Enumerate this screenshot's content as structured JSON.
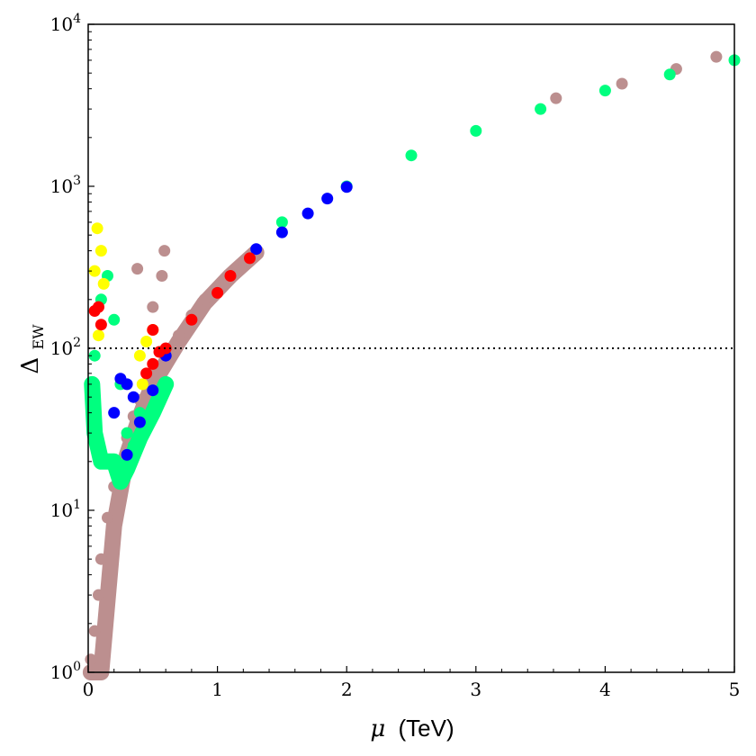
{
  "chart_data": {
    "type": "scatter",
    "title": "",
    "xlabel_symbol": "μ",
    "xlabel_unit": "(TeV)",
    "ylabel_symbol": "Δ",
    "ylabel_subscript": "EW",
    "xlim": [
      0,
      5
    ],
    "ylim": [
      1,
      10000
    ],
    "yscale": "log",
    "grid": false,
    "legend": "none",
    "x_ticks": [
      0,
      1,
      2,
      3,
      4,
      5
    ],
    "x_tick_labels": [
      "0",
      "1",
      "2",
      "3",
      "4",
      "5"
    ],
    "y_ticks": [
      1,
      10,
      100,
      1000,
      10000
    ],
    "y_tick_base": "10",
    "y_tick_exponents": [
      "0",
      "1",
      "2",
      "3",
      "4"
    ],
    "reference_line": {
      "y": 100,
      "style": "dotted",
      "color": "#000000"
    },
    "series": [
      {
        "color": "#bc8f8f",
        "points": [
          [
            0.02,
            1.2
          ],
          [
            0.05,
            1.8
          ],
          [
            0.08,
            3
          ],
          [
            0.1,
            5
          ],
          [
            0.15,
            9
          ],
          [
            0.2,
            14
          ],
          [
            0.25,
            20
          ],
          [
            0.3,
            28
          ],
          [
            0.35,
            38
          ],
          [
            0.4,
            48
          ],
          [
            0.5,
            70
          ],
          [
            0.6,
            95
          ],
          [
            0.7,
            120
          ],
          [
            0.8,
            160
          ],
          [
            0.9,
            200
          ],
          [
            1.0,
            240
          ],
          [
            1.1,
            290
          ],
          [
            1.2,
            340
          ],
          [
            1.3,
            400
          ],
          [
            0.38,
            310
          ],
          [
            0.57,
            280
          ],
          [
            0.59,
            400
          ],
          [
            0.5,
            180
          ],
          [
            3.62,
            3500
          ],
          [
            4.13,
            4300
          ],
          [
            4.55,
            5300
          ],
          [
            4.86,
            6300
          ]
        ],
        "band": [
          [
            0.02,
            1
          ],
          [
            0.1,
            1
          ],
          [
            0.2,
            8
          ],
          [
            0.3,
            22
          ],
          [
            0.4,
            38
          ],
          [
            0.5,
            60
          ],
          [
            0.7,
            110
          ],
          [
            0.9,
            190
          ],
          [
            1.1,
            280
          ],
          [
            1.3,
            390
          ]
        ]
      },
      {
        "color": "#00ff7f",
        "points": [
          [
            0.05,
            90
          ],
          [
            0.1,
            200
          ],
          [
            0.15,
            280
          ],
          [
            0.2,
            150
          ],
          [
            0.25,
            60
          ],
          [
            0.3,
            30
          ],
          [
            0.35,
            25
          ],
          [
            0.4,
            40
          ],
          [
            0.5,
            55
          ],
          [
            1.5,
            600
          ],
          [
            2.0,
            1000
          ],
          [
            2.5,
            1550
          ],
          [
            3.0,
            2200
          ],
          [
            3.5,
            3000
          ],
          [
            4.0,
            3900
          ],
          [
            4.5,
            4900
          ],
          [
            5.0,
            6000
          ]
        ],
        "band": [
          [
            0.03,
            60
          ],
          [
            0.05,
            30
          ],
          [
            0.1,
            20
          ],
          [
            0.2,
            20
          ],
          [
            0.25,
            15
          ],
          [
            0.3,
            18
          ],
          [
            0.4,
            28
          ],
          [
            0.5,
            40
          ],
          [
            0.6,
            60
          ]
        ]
      },
      {
        "color": "#0000ff",
        "points": [
          [
            0.2,
            40
          ],
          [
            0.25,
            65
          ],
          [
            0.3,
            60
          ],
          [
            0.35,
            50
          ],
          [
            0.3,
            22
          ],
          [
            0.4,
            35
          ],
          [
            0.5,
            55
          ],
          [
            0.6,
            90
          ],
          [
            1.3,
            410
          ],
          [
            1.5,
            520
          ],
          [
            1.7,
            680
          ],
          [
            1.85,
            840
          ],
          [
            2.0,
            990
          ]
        ]
      },
      {
        "color": "#ffff00",
        "points": [
          [
            0.05,
            300
          ],
          [
            0.07,
            550
          ],
          [
            0.1,
            400
          ],
          [
            0.12,
            250
          ],
          [
            0.08,
            120
          ],
          [
            0.4,
            90
          ],
          [
            0.42,
            60
          ],
          [
            0.45,
            110
          ],
          [
            0.5,
            130
          ]
        ]
      },
      {
        "color": "#ff0000",
        "points": [
          [
            0.05,
            170
          ],
          [
            0.08,
            180
          ],
          [
            0.1,
            140
          ],
          [
            0.45,
            70
          ],
          [
            0.5,
            80
          ],
          [
            0.55,
            95
          ],
          [
            0.5,
            130
          ],
          [
            0.6,
            100
          ],
          [
            0.8,
            150
          ],
          [
            1.0,
            220
          ],
          [
            1.1,
            280
          ],
          [
            1.25,
            360
          ]
        ]
      }
    ]
  }
}
